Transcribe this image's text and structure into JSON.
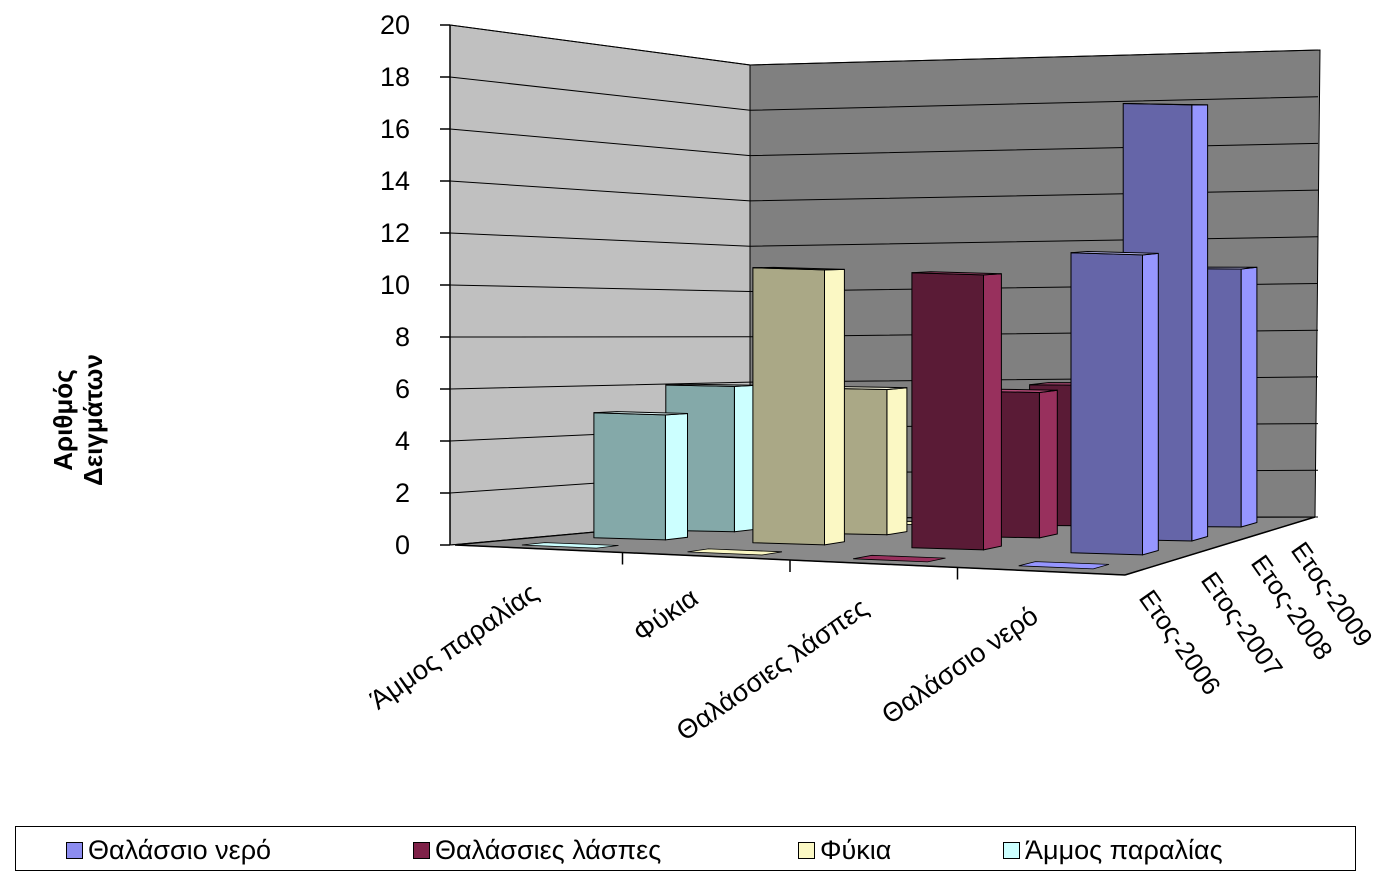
{
  "chart_data": {
    "type": "bar",
    "subtype": "3d-column",
    "categories": [
      "Άμμος παραλίας",
      "Φύκια",
      "Θαλάσσιες λάσπες",
      "Θαλάσσιο νερό"
    ],
    "series": [
      {
        "name": "Ετος-2006",
        "values": [
          0,
          0,
          0,
          0
        ]
      },
      {
        "name": "Ετος-2007",
        "values": [
          5,
          11,
          11,
          12
        ]
      },
      {
        "name": "Ετος-2008",
        "values": [
          6,
          6,
          6,
          18
        ]
      },
      {
        "name": "Ετος-2009",
        "values": [
          0,
          0,
          6,
          11
        ]
      }
    ],
    "ylabel_lines": [
      "Αριθμός",
      "Δειγμάτων"
    ],
    "ylim": [
      0,
      20
    ],
    "yticks": [
      0,
      2,
      4,
      6,
      8,
      10,
      12,
      14,
      16,
      18,
      20
    ],
    "grid": true,
    "legend_position": "bottom",
    "legend": [
      {
        "label": "Θαλάσσιο νερό",
        "color": "#8c8cf0"
      },
      {
        "label": "Θαλάσσιες λάσπες",
        "color": "#7e2148"
      },
      {
        "label": "Φύκια",
        "color": "#fbf8c4"
      },
      {
        "label": "Άμμος παραλίας",
        "color": "#ccffff"
      }
    ],
    "category_colors": {
      "Άμμος παραλίας": {
        "front": "#84a9a9",
        "side": "#ccffff",
        "top": "#e9ffff"
      },
      "Φύκια": {
        "front": "#aaa886",
        "side": "#fbf8c4",
        "top": "#fdfce4"
      },
      "Θαλάσσιες λάσπες": {
        "front": "#5a1b36",
        "side": "#98305d",
        "top": "#b34a77"
      },
      "Θαλάσσιο νερό": {
        "front": "#6565a8",
        "side": "#9696ff",
        "top": "#c4c4ff"
      }
    },
    "wall_colors": {
      "left": "#c0c0c0",
      "back": "#808080",
      "floor": "#8a8a8a"
    }
  }
}
